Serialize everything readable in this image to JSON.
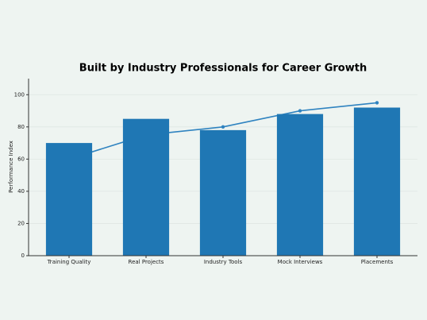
{
  "chart_data": {
    "type": "bar",
    "title": "Built by Industry Professionals for Career Growth",
    "y_label": "Performance Index",
    "categories": [
      "Training Quality",
      "Real Projects",
      "Industry Tools",
      "Mock Interviews",
      "Placements"
    ],
    "series": [
      {
        "type": "bar",
        "color": "#1f77b4",
        "values": [
          70,
          85,
          78,
          88,
          92
        ]
      },
      {
        "type": "line",
        "color": "#2f83c0",
        "values": [
          60,
          75,
          80,
          90,
          95
        ]
      }
    ],
    "ylim": [
      0,
      110
    ],
    "yticks": [
      0,
      20,
      40,
      60,
      80,
      100
    ],
    "grid": true
  }
}
